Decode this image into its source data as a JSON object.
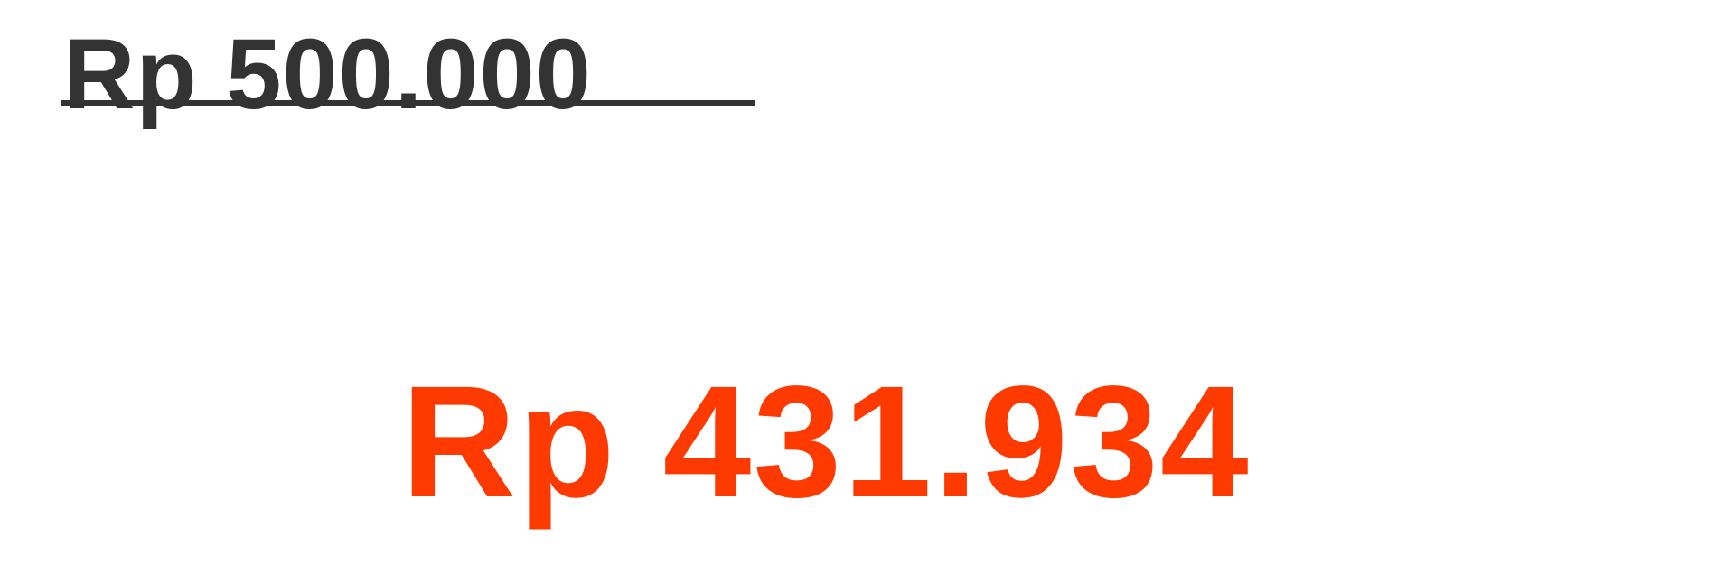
{
  "price": {
    "original": "Rp 500.000",
    "discounted": "Rp 431.934"
  },
  "colors": {
    "original_text": "#333333",
    "discounted_text": "#ff3a00",
    "background": "#ffffff"
  }
}
